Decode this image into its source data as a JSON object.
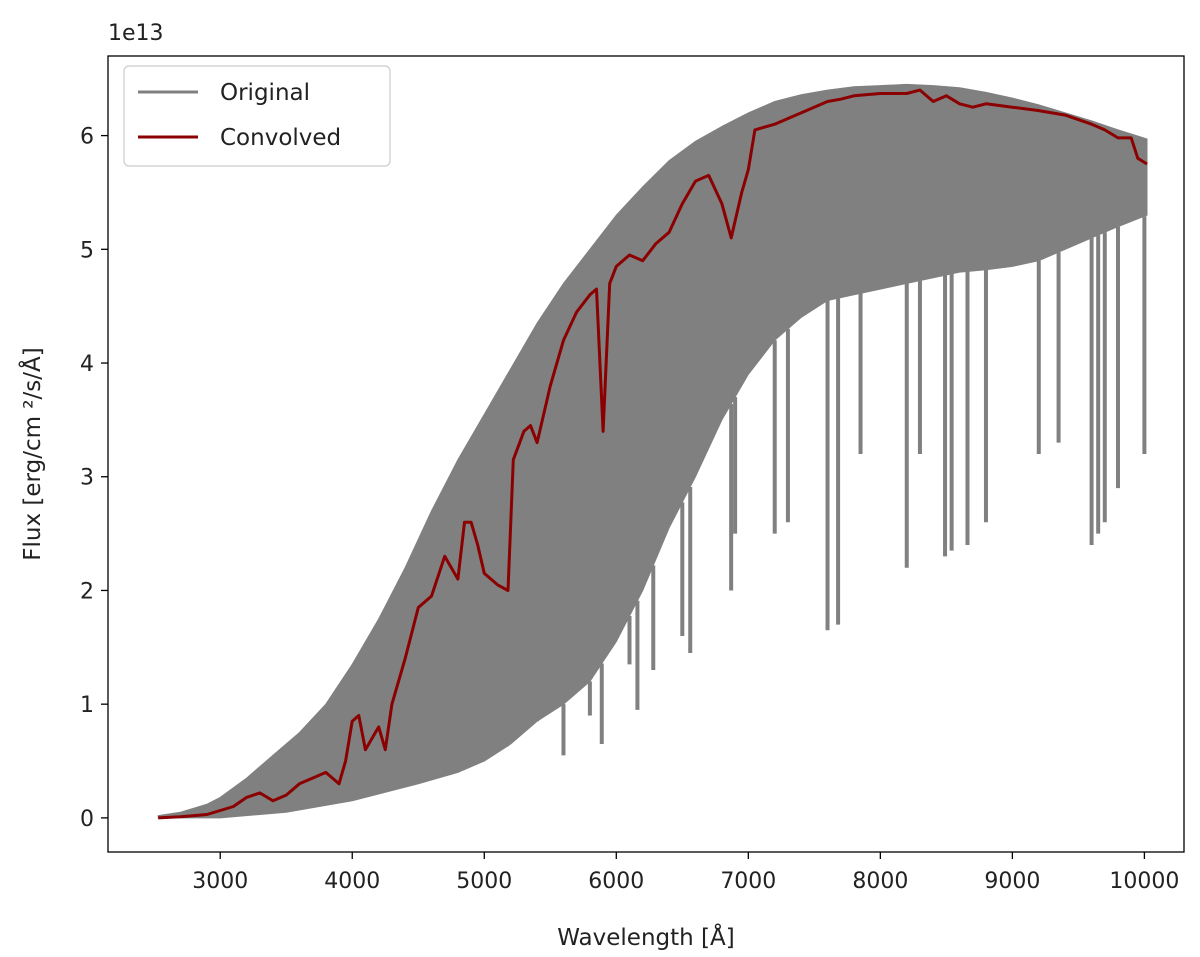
{
  "chart_data": {
    "type": "line",
    "title": "",
    "xlabel": "Wavelength [Å]",
    "ylabel": "Flux [erg/cm ²/s/Å]",
    "offset_text": "1e13",
    "xlim": [
      2150,
      10300
    ],
    "ylim": [
      -0.3,
      6.7
    ],
    "x_ticks": [
      3000,
      4000,
      5000,
      6000,
      7000,
      8000,
      9000,
      10000
    ],
    "y_ticks": [
      0,
      1,
      2,
      3,
      4,
      5,
      6
    ],
    "grid": false,
    "legend_position": "top-left",
    "colors": {
      "original": "#808080",
      "convolved": "#8b0000"
    },
    "series": [
      {
        "name": "Original",
        "upper": [
          [
            2530,
            0.02
          ],
          [
            2700,
            0.05
          ],
          [
            2900,
            0.12
          ],
          [
            3000,
            0.18
          ],
          [
            3200,
            0.35
          ],
          [
            3400,
            0.55
          ],
          [
            3600,
            0.75
          ],
          [
            3800,
            1.0
          ],
          [
            4000,
            1.35
          ],
          [
            4200,
            1.75
          ],
          [
            4400,
            2.2
          ],
          [
            4600,
            2.7
          ],
          [
            4800,
            3.15
          ],
          [
            5000,
            3.55
          ],
          [
            5200,
            3.95
          ],
          [
            5400,
            4.35
          ],
          [
            5600,
            4.7
          ],
          [
            5800,
            5.0
          ],
          [
            6000,
            5.3
          ],
          [
            6200,
            5.55
          ],
          [
            6400,
            5.78
          ],
          [
            6600,
            5.95
          ],
          [
            6800,
            6.08
          ],
          [
            7000,
            6.2
          ],
          [
            7200,
            6.3
          ],
          [
            7400,
            6.36
          ],
          [
            7600,
            6.4
          ],
          [
            7800,
            6.43
          ],
          [
            8000,
            6.44
          ],
          [
            8200,
            6.45
          ],
          [
            8400,
            6.44
          ],
          [
            8600,
            6.42
          ],
          [
            8800,
            6.38
          ],
          [
            9000,
            6.33
          ],
          [
            9200,
            6.27
          ],
          [
            9400,
            6.2
          ],
          [
            9600,
            6.13
          ],
          [
            9800,
            6.05
          ],
          [
            10020,
            5.97
          ]
        ],
        "lower": [
          [
            2530,
            0.0
          ],
          [
            3000,
            0.0
          ],
          [
            3500,
            0.05
          ],
          [
            4000,
            0.15
          ],
          [
            4500,
            0.3
          ],
          [
            4800,
            0.4
          ],
          [
            5000,
            0.5
          ],
          [
            5200,
            0.65
          ],
          [
            5400,
            0.85
          ],
          [
            5600,
            1.0
          ],
          [
            5800,
            1.2
          ],
          [
            6000,
            1.55
          ],
          [
            6200,
            2.0
          ],
          [
            6400,
            2.55
          ],
          [
            6600,
            3.0
          ],
          [
            6800,
            3.5
          ],
          [
            7000,
            3.9
          ],
          [
            7200,
            4.2
          ],
          [
            7400,
            4.4
          ],
          [
            7600,
            4.55
          ],
          [
            7800,
            4.6
          ],
          [
            8000,
            4.65
          ],
          [
            8200,
            4.7
          ],
          [
            8400,
            4.75
          ],
          [
            8600,
            4.8
          ],
          [
            8800,
            4.82
          ],
          [
            9000,
            4.85
          ],
          [
            9200,
            4.9
          ],
          [
            9400,
            5.0
          ],
          [
            9600,
            5.1
          ],
          [
            9800,
            5.2
          ],
          [
            10020,
            5.3
          ]
        ],
        "absorption_lines": [
          [
            5170,
            1.0
          ],
          [
            5400,
            1.2
          ],
          [
            5600,
            0.55
          ],
          [
            5800,
            0.9
          ],
          [
            5890,
            0.65
          ],
          [
            6100,
            1.35
          ],
          [
            6160,
            0.95
          ],
          [
            6280,
            1.3
          ],
          [
            6500,
            1.6
          ],
          [
            6560,
            1.45
          ],
          [
            6870,
            2.0
          ],
          [
            6900,
            2.5
          ],
          [
            7200,
            2.5
          ],
          [
            7300,
            2.6
          ],
          [
            7600,
            1.65
          ],
          [
            7680,
            1.7
          ],
          [
            7850,
            3.2
          ],
          [
            8200,
            2.2
          ],
          [
            8300,
            3.2
          ],
          [
            8490,
            2.3
          ],
          [
            8540,
            2.35
          ],
          [
            8660,
            2.4
          ],
          [
            8800,
            2.6
          ],
          [
            9200,
            3.2
          ],
          [
            9350,
            3.3
          ],
          [
            9600,
            2.4
          ],
          [
            9650,
            2.5
          ],
          [
            9700,
            2.6
          ],
          [
            9800,
            2.9
          ],
          [
            10000,
            3.2
          ]
        ]
      },
      {
        "name": "Convolved",
        "points": [
          [
            2530,
            0.0
          ],
          [
            2700,
            0.01
          ],
          [
            2900,
            0.03
          ],
          [
            3100,
            0.1
          ],
          [
            3200,
            0.18
          ],
          [
            3300,
            0.22
          ],
          [
            3400,
            0.15
          ],
          [
            3500,
            0.2
          ],
          [
            3600,
            0.3
          ],
          [
            3700,
            0.35
          ],
          [
            3800,
            0.4
          ],
          [
            3900,
            0.3
          ],
          [
            3950,
            0.5
          ],
          [
            4000,
            0.85
          ],
          [
            4050,
            0.9
          ],
          [
            4100,
            0.6
          ],
          [
            4200,
            0.8
          ],
          [
            4250,
            0.6
          ],
          [
            4300,
            1.0
          ],
          [
            4400,
            1.4
          ],
          [
            4500,
            1.85
          ],
          [
            4600,
            1.95
          ],
          [
            4700,
            2.3
          ],
          [
            4800,
            2.1
          ],
          [
            4850,
            2.6
          ],
          [
            4900,
            2.6
          ],
          [
            4950,
            2.4
          ],
          [
            5000,
            2.15
          ],
          [
            5100,
            2.05
          ],
          [
            5180,
            2.0
          ],
          [
            5220,
            3.15
          ],
          [
            5300,
            3.4
          ],
          [
            5350,
            3.45
          ],
          [
            5400,
            3.3
          ],
          [
            5500,
            3.8
          ],
          [
            5600,
            4.2
          ],
          [
            5700,
            4.45
          ],
          [
            5800,
            4.6
          ],
          [
            5850,
            4.65
          ],
          [
            5900,
            3.4
          ],
          [
            5950,
            4.7
          ],
          [
            6000,
            4.85
          ],
          [
            6100,
            4.95
          ],
          [
            6200,
            4.9
          ],
          [
            6300,
            5.05
          ],
          [
            6400,
            5.15
          ],
          [
            6500,
            5.4
          ],
          [
            6600,
            5.6
          ],
          [
            6700,
            5.65
          ],
          [
            6800,
            5.4
          ],
          [
            6870,
            5.1
          ],
          [
            6950,
            5.5
          ],
          [
            7000,
            5.7
          ],
          [
            7050,
            6.05
          ],
          [
            7200,
            6.1
          ],
          [
            7400,
            6.2
          ],
          [
            7600,
            6.3
          ],
          [
            7700,
            6.32
          ],
          [
            7800,
            6.35
          ],
          [
            8000,
            6.37
          ],
          [
            8200,
            6.37
          ],
          [
            8300,
            6.4
          ],
          [
            8400,
            6.3
          ],
          [
            8500,
            6.35
          ],
          [
            8600,
            6.28
          ],
          [
            8700,
            6.25
          ],
          [
            8800,
            6.28
          ],
          [
            9000,
            6.25
          ],
          [
            9200,
            6.22
          ],
          [
            9400,
            6.18
          ],
          [
            9600,
            6.1
          ],
          [
            9700,
            6.05
          ],
          [
            9800,
            5.98
          ],
          [
            9900,
            5.98
          ],
          [
            9950,
            5.8
          ],
          [
            10020,
            5.75
          ]
        ]
      }
    ]
  }
}
